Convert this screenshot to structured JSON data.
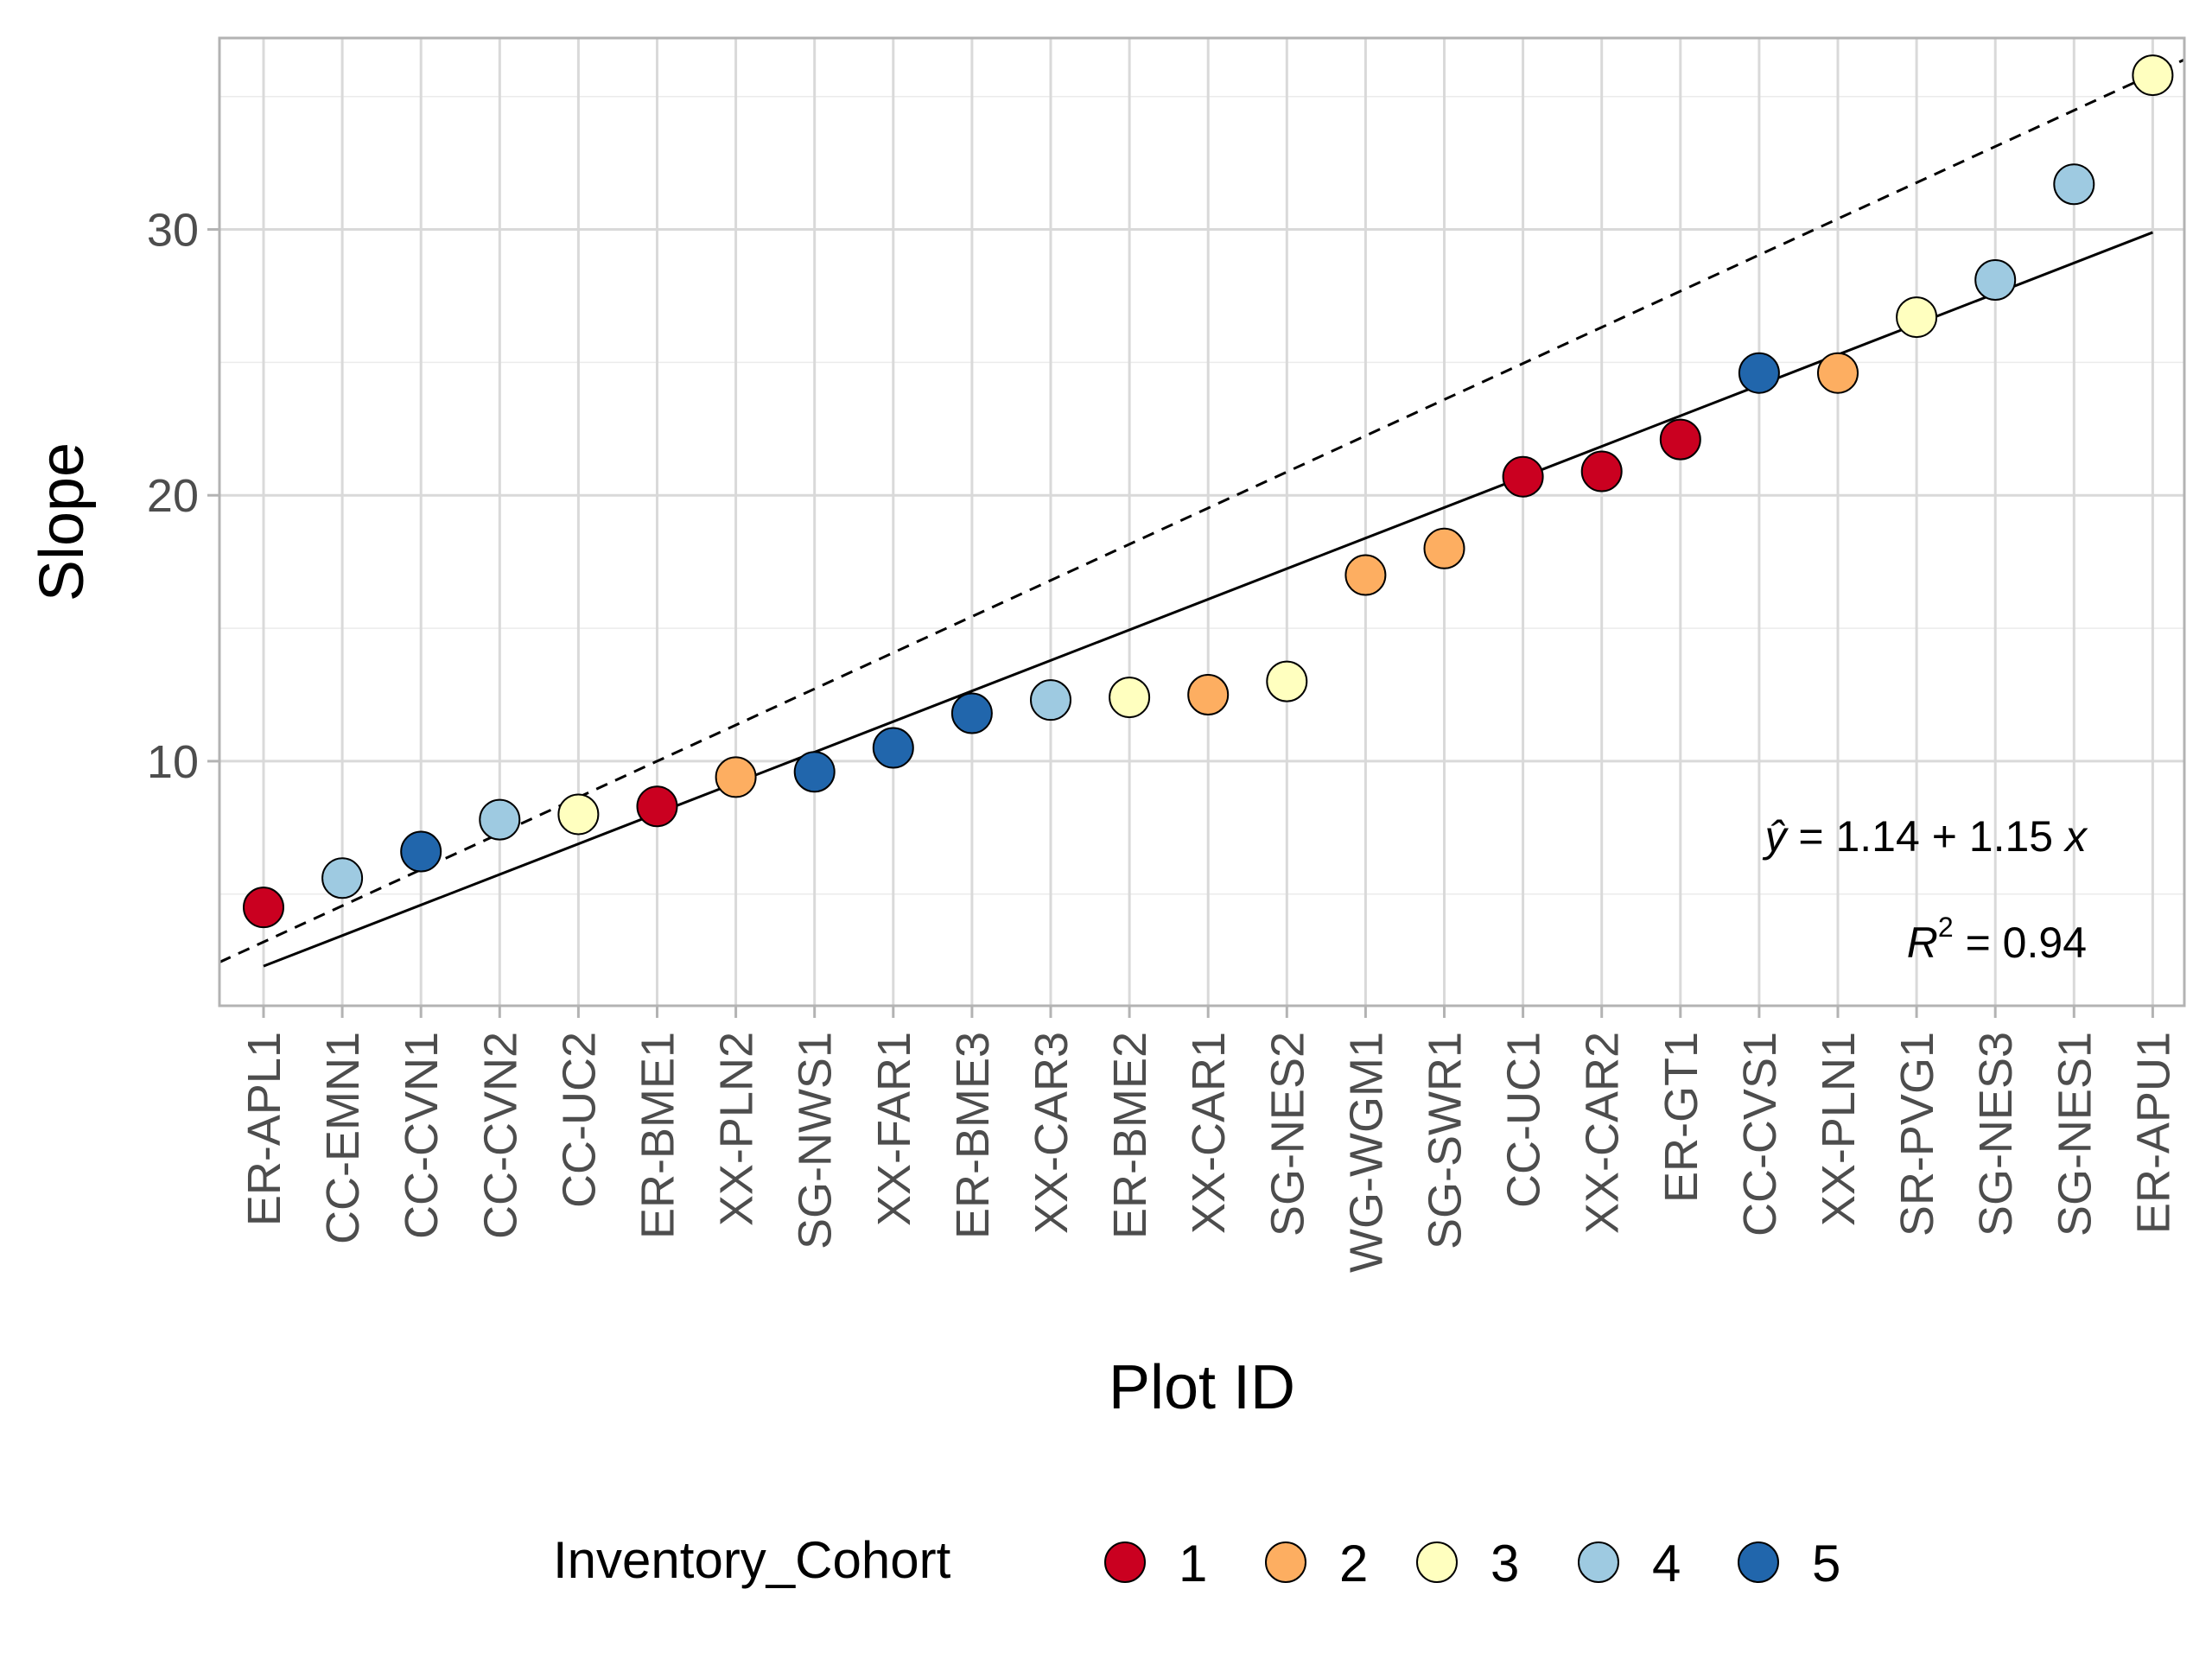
{
  "chart_data": {
    "type": "scatter",
    "title": "",
    "xlabel": "Plot ID",
    "ylabel": "Slope",
    "ylim": [
      0.8,
      37.2
    ],
    "yticks": [
      10,
      20,
      30
    ],
    "grid": true,
    "legend": {
      "title": "Inventory_Cohort",
      "placement": "bottom",
      "entries": [
        {
          "label": "1",
          "color": "#ca0020"
        },
        {
          "label": "2",
          "color": "#fdae61"
        },
        {
          "label": "3",
          "color": "#ffffbf"
        },
        {
          "label": "4",
          "color": "#9ecae1"
        },
        {
          "label": "5",
          "color": "#2166ac"
        }
      ]
    },
    "categories": [
      "ER-APL1",
      "CC-EMN1",
      "CC-CVN1",
      "CC-CVN2",
      "CC-UC2",
      "ER-BME1",
      "XX-PLN2",
      "SG-NWS1",
      "XX-FAR1",
      "ER-BME3",
      "XX-CAR3",
      "ER-BME2",
      "XX-CAR1",
      "SG-NES2",
      "WG-WGM1",
      "SG-SWR1",
      "CC-UC1",
      "XX-CAR2",
      "ER-GT1",
      "CC-CVS1",
      "XX-PLN1",
      "SR-PVG1",
      "SG-NES3",
      "SG-NES1",
      "ER-APU1"
    ],
    "values": [
      4.5,
      5.6,
      6.6,
      7.8,
      8.0,
      8.3,
      9.4,
      9.6,
      10.5,
      11.8,
      12.3,
      12.4,
      12.5,
      13.0,
      17.0,
      18.0,
      20.7,
      20.9,
      22.1,
      24.6,
      24.6,
      26.7,
      28.1,
      31.7,
      35.8
    ],
    "cohorts": [
      1,
      4,
      5,
      4,
      3,
      1,
      2,
      5,
      5,
      5,
      4,
      3,
      2,
      3,
      2,
      2,
      1,
      1,
      1,
      5,
      2,
      3,
      4,
      4,
      3
    ],
    "fit_line": {
      "style": "solid",
      "intercept": 1.14,
      "slope": 1.15
    },
    "reference_line": {
      "style": "dashed",
      "intercept": 3.2,
      "slope": 1.36
    },
    "annotations": {
      "yhat": "ŷ",
      "equation": " = 1.14 + 1.15 ",
      "x_var": "x",
      "r2_symbol": "R",
      "r2_sup": "2",
      "r2_value": " = 0.94"
    }
  }
}
